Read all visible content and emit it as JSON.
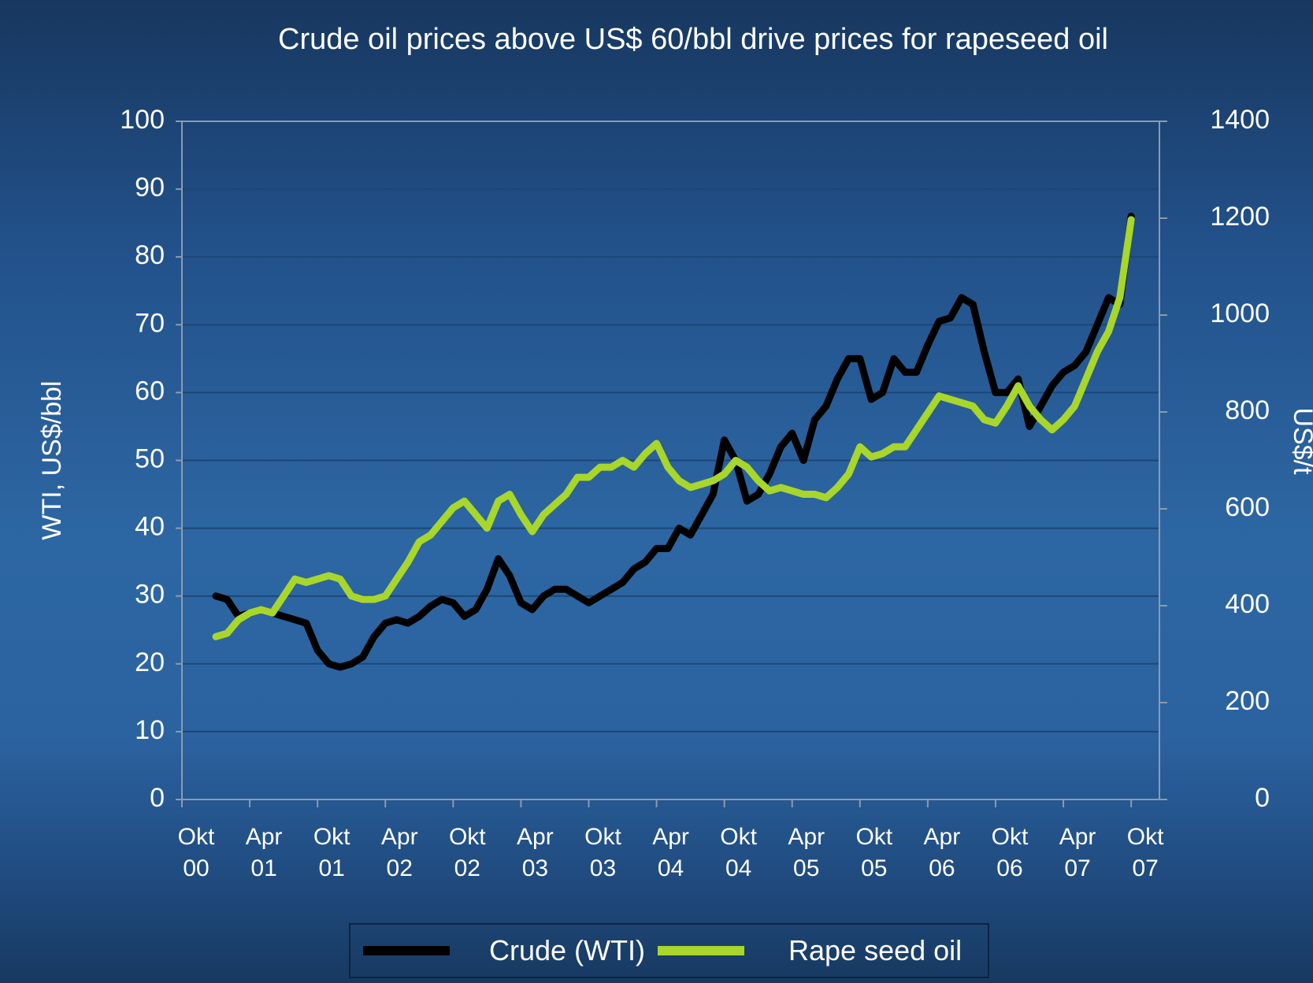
{
  "chart_data": {
    "type": "line",
    "title": "Crude oil prices above US$ 60/bbl drive prices for rapeseed oil",
    "ylabel": "WTI, US$/bbl",
    "y2label": "US$/t",
    "xlim": [
      0,
      86.5
    ],
    "xticks": [
      {
        "value": 0,
        "label": "Okt 00"
      },
      {
        "value": 6,
        "label": "Apr 01"
      },
      {
        "value": 12,
        "label": "Okt 01"
      },
      {
        "value": 18,
        "label": "Apr 02"
      },
      {
        "value": 24,
        "label": "Okt 02"
      },
      {
        "value": 30,
        "label": "Apr 03"
      },
      {
        "value": 36,
        "label": "Okt 03"
      },
      {
        "value": 42,
        "label": "Apr 04"
      },
      {
        "value": 48,
        "label": "Okt 04"
      },
      {
        "value": 54,
        "label": "Apr 05"
      },
      {
        "value": 60,
        "label": "Okt 05"
      },
      {
        "value": 66,
        "label": "Apr 06"
      },
      {
        "value": 72,
        "label": "Okt 06"
      },
      {
        "value": 78,
        "label": "Apr 07"
      },
      {
        "value": 84,
        "label": "Okt 07"
      }
    ],
    "ylim": [
      0,
      100
    ],
    "yticks": [
      0,
      10,
      20,
      30,
      40,
      50,
      60,
      70,
      80,
      90,
      100
    ],
    "y2lim": [
      0,
      1400
    ],
    "y2ticks": [
      0,
      200,
      400,
      600,
      800,
      1000,
      1200,
      1400
    ],
    "grid": true,
    "legend": "bottom",
    "x": [
      3,
      4,
      5,
      6,
      7,
      8,
      9,
      10,
      11,
      12,
      13,
      14,
      15,
      16,
      17,
      18,
      19,
      20,
      21,
      22,
      23,
      24,
      25,
      26,
      27,
      28,
      29,
      30,
      31,
      32,
      33,
      34,
      35,
      36,
      37,
      38,
      39,
      40,
      41,
      42,
      43,
      44,
      45,
      46,
      47,
      48,
      49,
      50,
      51,
      52,
      53,
      54,
      55,
      56,
      57,
      58,
      59,
      60,
      61,
      62,
      63,
      64,
      65,
      66,
      67,
      68,
      69,
      70,
      71,
      72,
      73,
      74,
      75,
      76,
      77,
      78,
      79,
      80,
      81,
      82,
      83,
      84
    ],
    "series": [
      {
        "name": "Crude (WTI)",
        "color": "#000000",
        "axis": "y",
        "values": [
          30,
          29.5,
          27,
          27.5,
          28,
          27.5,
          27,
          26.5,
          26,
          22,
          20,
          19.5,
          20,
          21,
          24,
          26,
          26.5,
          26,
          27,
          28.5,
          29.5,
          29,
          27,
          28,
          31,
          35.5,
          33,
          29,
          28,
          30,
          31,
          31,
          30,
          29,
          30,
          31,
          32,
          34,
          35,
          37,
          37,
          40,
          39,
          42,
          45,
          53,
          50,
          44,
          45,
          48,
          52,
          54,
          50,
          56,
          58,
          62,
          65,
          65,
          59,
          60,
          65,
          63,
          63,
          67,
          70.5,
          71,
          74,
          73,
          66,
          60,
          60,
          62,
          55,
          58,
          61,
          63,
          64,
          66,
          70,
          74,
          73,
          86
        ]
      },
      {
        "name": "Rape seed oil",
        "color": "#a8d62a",
        "axis": "y2",
        "values": [
          336,
          343,
          371,
          385,
          392,
          385,
          420,
          455,
          448,
          455,
          462,
          455,
          420,
          413,
          413,
          420,
          455,
          490,
          532,
          546,
          574,
          602,
          616,
          588,
          560,
          616,
          630,
          588,
          553,
          588,
          609,
          630,
          665,
          665,
          686,
          686,
          700,
          686,
          714,
          735,
          686,
          658,
          644,
          651,
          658,
          672,
          700,
          686,
          658,
          637,
          644,
          637,
          630,
          630,
          623,
          644,
          672,
          728,
          707,
          714,
          728,
          728,
          763,
          798,
          833,
          826,
          819,
          812,
          784,
          777,
          812,
          854,
          812,
          784,
          763,
          784,
          812,
          868,
          924,
          966,
          1036,
          1197
        ]
      }
    ]
  }
}
